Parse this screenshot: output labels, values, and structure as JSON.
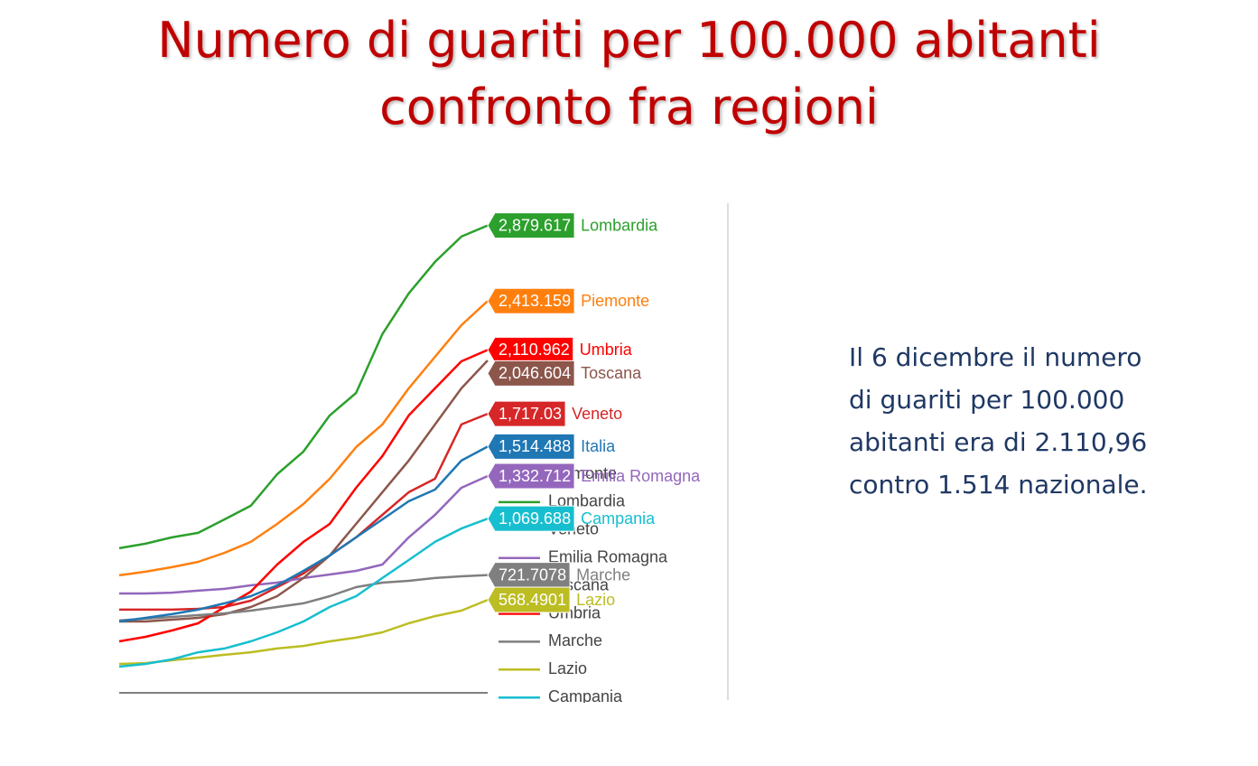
{
  "slide": {
    "title": [
      "Numero di guariti per 100.000 abitanti",
      "confronto fra regioni"
    ],
    "note": [
      "Il 6 dicembre il numero",
      "di guariti per 100.000",
      "abitanti era di 2.110,96",
      "contro 1.514 nazionale."
    ]
  },
  "chart_data": {
    "type": "line",
    "categories": [
      null,
      null,
      null,
      null,
      null,
      null,
      null,
      null,
      null,
      null,
      null,
      null,
      null,
      null,
      null
    ],
    "ylim": [
      0,
      3000
    ],
    "series": [
      {
        "name": "Piemonte",
        "color": "#ff7f0e",
        "values": [
          720,
          742,
          770,
          803,
          859,
          926,
          1037,
          1160,
          1316,
          1511,
          1651,
          1874,
          2069,
          2264,
          2413.159
        ],
        "value_labels": [
          null,
          null,
          null,
          null,
          null,
          null,
          null,
          null,
          null,
          null,
          null,
          null,
          null,
          null,
          "2,413.159"
        ]
      },
      {
        "name": "Lombardia",
        "color": "#2ca02c",
        "values": [
          887,
          915,
          954,
          982,
          1065,
          1149,
          1344,
          1484,
          1707,
          1846,
          2209,
          2460,
          2655,
          2811,
          2879.617
        ],
        "value_labels": [
          null,
          null,
          null,
          null,
          null,
          null,
          null,
          null,
          null,
          null,
          null,
          null,
          null,
          null,
          "2,879.617"
        ]
      },
      {
        "name": "Veneto",
        "color": "#d62728",
        "values": [
          508,
          508,
          508,
          513,
          524,
          563,
          647,
          731,
          842,
          954,
          1093,
          1233,
          1316,
          1651,
          1717.03
        ],
        "value_labels": [
          null,
          null,
          null,
          null,
          null,
          null,
          null,
          null,
          null,
          null,
          null,
          null,
          null,
          null,
          "1,717.03"
        ]
      },
      {
        "name": "Emilia Romagna",
        "color": "#9467bd",
        "values": [
          608,
          608,
          613,
          625,
          636,
          658,
          675,
          703,
          725,
          747,
          786,
          954,
          1093,
          1260,
          1332.712
        ],
        "value_labels": [
          null,
          null,
          null,
          null,
          null,
          null,
          null,
          null,
          null,
          null,
          null,
          null,
          null,
          null,
          "1,332.712"
        ]
      },
      {
        "name": "Toscana",
        "color": "#8c564b",
        "values": [
          435,
          435,
          446,
          457,
          480,
          524,
          591,
          703,
          842,
          1037,
          1233,
          1428,
          1651,
          1874,
          2046.604
        ],
        "value_labels": [
          null,
          null,
          null,
          null,
          null,
          null,
          null,
          null,
          null,
          null,
          null,
          null,
          null,
          null,
          "2,046.604"
        ]
      },
      {
        "name": "Umbria",
        "color": "#ff0000",
        "values": [
          312,
          340,
          379,
          424,
          524,
          619,
          786,
          926,
          1037,
          1260,
          1456,
          1707,
          1874,
          2041,
          2110.962
        ],
        "value_labels": [
          null,
          null,
          null,
          null,
          null,
          null,
          null,
          null,
          null,
          null,
          null,
          null,
          null,
          null,
          "2,110.962"
        ]
      },
      {
        "name": "Marche",
        "color": "#7f7f7f",
        "values": [
          441,
          452,
          463,
          474,
          485,
          502,
          524,
          547,
          591,
          647,
          675,
          686,
          703,
          714,
          721.7078
        ],
        "value_labels": [
          null,
          null,
          null,
          null,
          null,
          null,
          null,
          null,
          null,
          null,
          null,
          null,
          null,
          null,
          "721.7078"
        ]
      },
      {
        "name": "Lazio",
        "color": "#bcbd22",
        "values": [
          173,
          178,
          195,
          212,
          229,
          245,
          268,
          284,
          312,
          335,
          368,
          424,
          468,
          502,
          568.4901
        ],
        "value_labels": [
          null,
          null,
          null,
          null,
          null,
          null,
          null,
          null,
          null,
          null,
          null,
          null,
          null,
          null,
          "568.4901"
        ]
      },
      {
        "name": "Campania",
        "color": "#17becf",
        "values": [
          156,
          173,
          201,
          245,
          268,
          312,
          368,
          435,
          524,
          591,
          703,
          814,
          926,
          1009,
          1069.688
        ],
        "value_labels": [
          null,
          null,
          null,
          null,
          null,
          null,
          null,
          null,
          null,
          null,
          null,
          null,
          null,
          null,
          "1,069.688"
        ]
      },
      {
        "name": "Italia",
        "color": "#1f77b4",
        "values": [
          435,
          457,
          480,
          508,
          547,
          591,
          658,
          747,
          842,
          954,
          1065,
          1177,
          1249,
          1428,
          1514.488
        ],
        "value_labels": [
          null,
          null,
          null,
          null,
          null,
          null,
          null,
          null,
          null,
          null,
          null,
          null,
          null,
          null,
          "1,514.488"
        ]
      }
    ]
  }
}
